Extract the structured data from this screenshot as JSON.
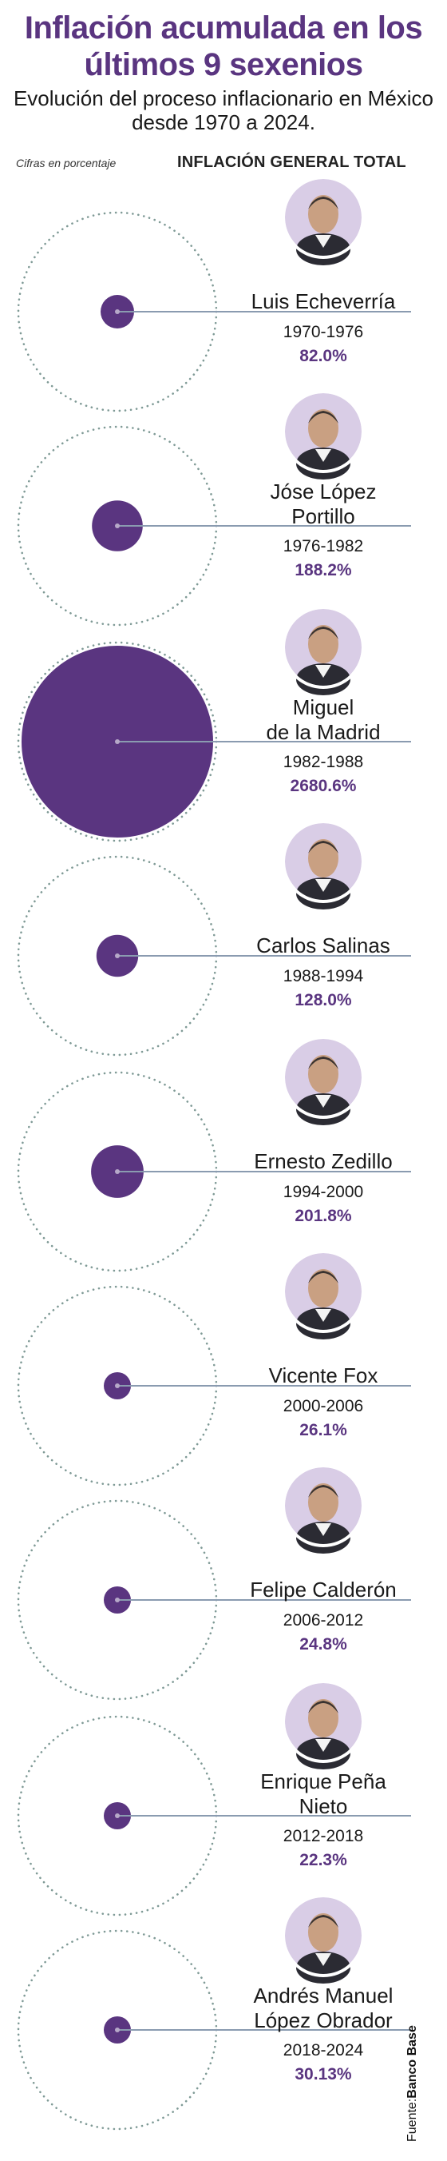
{
  "title": "Inflación acumulada en los últimos 9 sexenios",
  "subtitle": "Evolución del proceso inflacionario en México desde 1970 a 2024.",
  "note": "Cifras en porcentaje",
  "header": "INFLACIÓN GENERAL TOTAL",
  "source_label": "Fuente:",
  "source_name": "Banco Base",
  "colors": {
    "accent": "#5a3580",
    "portrait_bg": "#d9cde6",
    "line": "#8a9bb0",
    "dotted": "#7f9a96"
  },
  "chart_data": {
    "type": "bubble",
    "unit": "%",
    "max_reference": 2680.6,
    "items": [
      {
        "name": "Luis Echeverría",
        "period": "1970-1976",
        "value": 82.0,
        "value_label": "82.0%"
      },
      {
        "name": "Jóse López Portillo",
        "period": "1976-1982",
        "value": 188.2,
        "value_label": "188.2%"
      },
      {
        "name": "Miguel de la Madrid",
        "period": "1982-1988",
        "value": 2680.6,
        "value_label": "2680.6%"
      },
      {
        "name": "Carlos Salinas",
        "period": "1988-1994",
        "value": 128.0,
        "value_label": "128.0%"
      },
      {
        "name": "Ernesto Zedillo",
        "period": "1994-2000",
        "value": 201.8,
        "value_label": "201.8%"
      },
      {
        "name": "Vicente Fox",
        "period": "2000-2006",
        "value": 26.1,
        "value_label": "26.1%"
      },
      {
        "name": "Felipe Calderón",
        "period": "2006-2012",
        "value": 24.8,
        "value_label": "24.8%"
      },
      {
        "name": "Enrique Peña Nieto",
        "period": "2012-2018",
        "value": 22.3,
        "value_label": "22.3%"
      },
      {
        "name": "Andrés Manuel López Obrador",
        "period": "2018-2024",
        "value": 30.13,
        "value_label": "30.13%"
      }
    ]
  }
}
